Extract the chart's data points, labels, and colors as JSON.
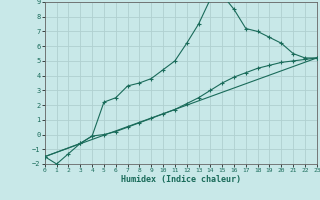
{
  "xlabel": "Humidex (Indice chaleur)",
  "xlim": [
    0,
    23
  ],
  "ylim": [
    -2,
    9
  ],
  "xticks": [
    0,
    1,
    2,
    3,
    4,
    5,
    6,
    7,
    8,
    9,
    10,
    11,
    12,
    13,
    14,
    15,
    16,
    17,
    18,
    19,
    20,
    21,
    22,
    23
  ],
  "yticks": [
    -2,
    -1,
    0,
    1,
    2,
    3,
    4,
    5,
    6,
    7,
    8,
    9
  ],
  "line_color": "#1a6b5a",
  "background_color": "#c8e8e8",
  "grid_color": "#b0d0d0",
  "line1_x": [
    0,
    1,
    2,
    3,
    4,
    5,
    6,
    7,
    8,
    9,
    10,
    11,
    12,
    13,
    14,
    15,
    16,
    17,
    18,
    19,
    20,
    21,
    22,
    23
  ],
  "line1_y": [
    -1.5,
    -2.0,
    -1.3,
    -0.6,
    -0.1,
    2.2,
    2.5,
    3.3,
    3.5,
    3.8,
    4.4,
    5.0,
    6.2,
    7.5,
    9.2,
    9.5,
    8.5,
    7.2,
    7.0,
    6.6,
    6.2,
    5.5,
    5.2,
    5.2
  ],
  "line2_x": [
    0,
    23
  ],
  "line2_y": [
    -1.5,
    5.2
  ],
  "line3_x": [
    0,
    3,
    4,
    5,
    6,
    7,
    8,
    9,
    10,
    11,
    12,
    13,
    14,
    15,
    16,
    17,
    18,
    19,
    20,
    21,
    22,
    23
  ],
  "line3_y": [
    -1.5,
    -0.6,
    -0.1,
    0.0,
    0.2,
    0.5,
    0.8,
    1.1,
    1.4,
    1.7,
    2.1,
    2.5,
    3.0,
    3.5,
    3.9,
    4.2,
    4.5,
    4.7,
    4.9,
    5.0,
    5.1,
    5.2
  ]
}
